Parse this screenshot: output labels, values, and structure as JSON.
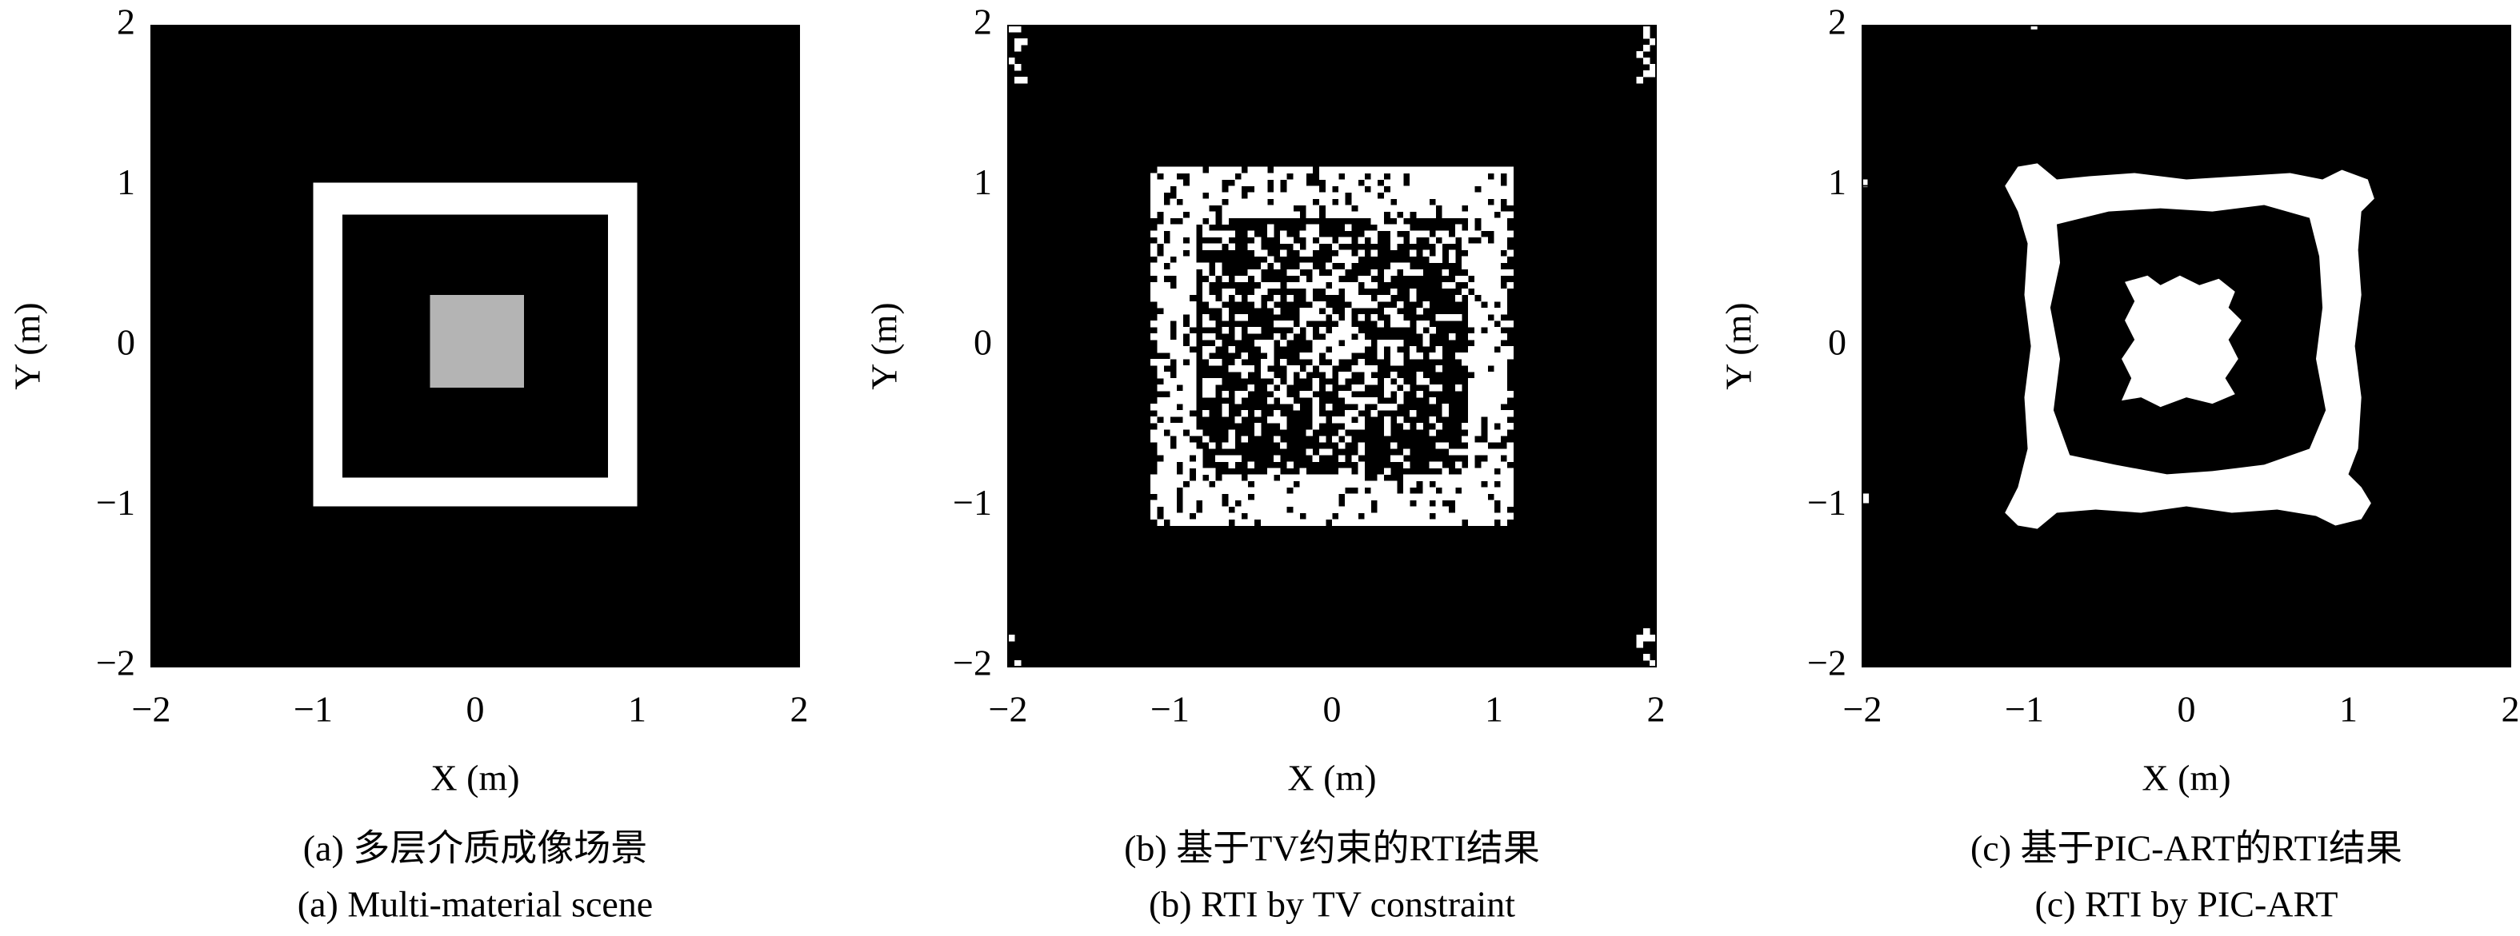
{
  "chart_data": [
    {
      "type": "image",
      "title": "(a) 多层介质成像场景",
      "subtitle": "(a) Multi-material scene",
      "xlabel": "X (m)",
      "ylabel": "Y (m)",
      "xlim": [
        -2,
        2
      ],
      "ylim": [
        -2,
        2
      ],
      "xticks": [
        {
          "value": -2,
          "label": "−2"
        },
        {
          "value": -1,
          "label": "−1"
        },
        0,
        1,
        2
      ],
      "yticks": [
        {
          "value": -2,
          "label": "−2"
        },
        {
          "value": -1,
          "label": "−1"
        },
        0,
        1,
        2
      ]
    },
    {
      "type": "image",
      "title": "(b) 基于TV约束的RTI结果",
      "subtitle": "(b) RTI by TV constraint",
      "xlabel": "X (m)",
      "ylabel": "Y (m)",
      "xlim": [
        -2,
        2
      ],
      "ylim": [
        -2,
        2
      ],
      "xticks": [
        {
          "value": -2,
          "label": "−2"
        },
        {
          "value": -1,
          "label": "−1"
        },
        0,
        1,
        2
      ],
      "yticks": [
        {
          "value": -2,
          "label": "−2"
        },
        {
          "value": -1,
          "label": "−1"
        },
        0,
        1,
        2
      ]
    },
    {
      "type": "image",
      "title": "(c) 基于PIC-ART的RTI结果",
      "subtitle": "(c) RTI by PIC-ART",
      "xlabel": "X (m)",
      "ylabel": "Y (m)",
      "xlim": [
        -2,
        2
      ],
      "ylim": [
        -2,
        2
      ],
      "xticks": [
        {
          "value": -2,
          "label": "−2"
        },
        {
          "value": -1,
          "label": "−1"
        },
        0,
        1,
        2
      ],
      "yticks": [
        {
          "value": -2,
          "label": "−2"
        },
        {
          "value": -1,
          "label": "−1"
        },
        0,
        1,
        2
      ]
    }
  ]
}
